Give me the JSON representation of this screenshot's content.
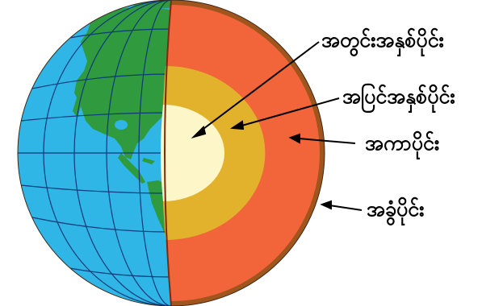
{
  "labels": {
    "inner_core": "အတွင်းအနှစ်ပိုင်း",
    "outer_core": "အပြင်အနှစ်ပိုင်း",
    "mantle": "အကာပိုင်း",
    "crust": "အခွံပိုင်း"
  },
  "colors": {
    "ocean": "#2fb6e6",
    "land": "#2f9a3e",
    "grid": "#0d3a7a",
    "crust": "#a0551c",
    "mantle": "#f2643a",
    "outer_core": "#e3b22c",
    "inner_core": "#fdf6c8",
    "pointer": "#000000"
  }
}
